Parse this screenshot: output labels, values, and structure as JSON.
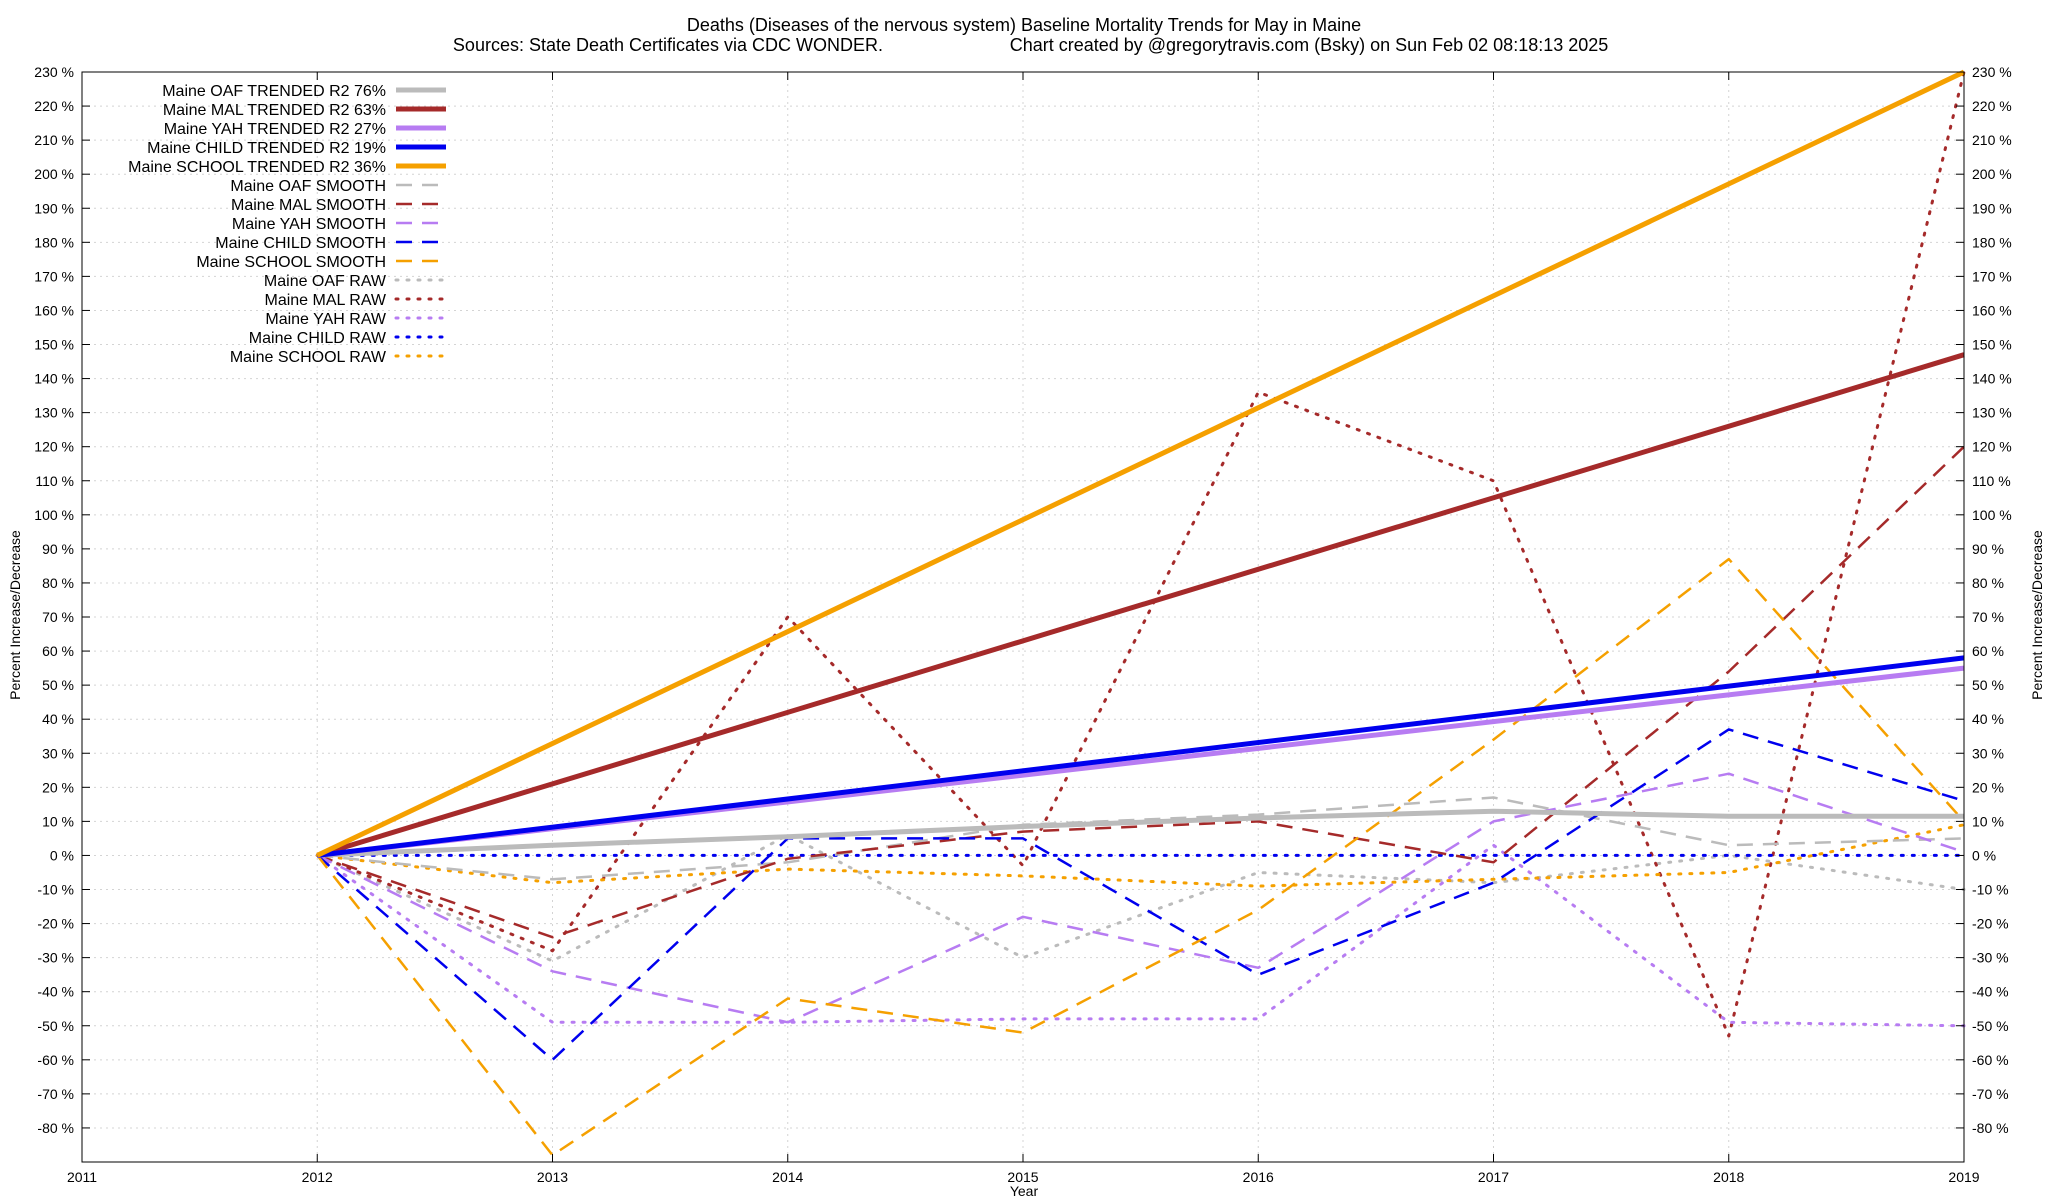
{
  "chart_data": {
    "type": "line",
    "title": "Deaths (Diseases of the nervous system)  Baseline Mortality Trends for May in Maine",
    "subtitle_left": "Sources: State Death Certificates via CDC WONDER.",
    "subtitle_right": "Chart created by @gregorytravis.com (Bsky) on Sun Feb 02 08:18:13 2025",
    "xlabel": "Year",
    "ylabel": "Percent Increase/Decrease",
    "ylabel_right": "Percent Increase/Decrease",
    "xlim": [
      2011,
      2019
    ],
    "ylim": [
      -90,
      230
    ],
    "x_ticks": [
      "2011",
      "2012",
      "2013",
      "2014",
      "2015",
      "2016",
      "2017",
      "2018",
      "2019"
    ],
    "y_ticks": [
      "230 %",
      "220 %",
      "210 %",
      "200 %",
      "190 %",
      "180 %",
      "170 %",
      "160 %",
      "150 %",
      "140 %",
      "130 %",
      "120 %",
      "110 %",
      "100 %",
      "90 %",
      "80 %",
      "70 %",
      "60 %",
      "50 %",
      "40 %",
      "30 %",
      "20 %",
      "10 %",
      "0 %",
      "-10 %",
      "-20 %",
      "-30 %",
      "-40 %",
      "-50 %",
      "-60 %",
      "-70 %",
      "-80 %"
    ],
    "y_tick_values": [
      230,
      220,
      210,
      200,
      190,
      180,
      170,
      160,
      150,
      140,
      130,
      120,
      110,
      100,
      90,
      80,
      70,
      60,
      50,
      40,
      30,
      20,
      10,
      0,
      -10,
      -20,
      -30,
      -40,
      -50,
      -60,
      -70,
      -80
    ],
    "grid": true,
    "legend_position": "top-left",
    "series": [
      {
        "name": "Maine OAF TRENDED R2  76%",
        "style": "trend",
        "color": "#bbbbbb",
        "x": [
          2012,
          2013,
          2014,
          2015,
          2016,
          2017,
          2018,
          2019
        ],
        "values": [
          0,
          3,
          5.5,
          8.5,
          11,
          13,
          11.5,
          11.5
        ]
      },
      {
        "name": "Maine MAL TRENDED R2  63%",
        "style": "trend",
        "color": "#a52a2a",
        "x": [
          2012,
          2019
        ],
        "values": [
          0,
          147
        ]
      },
      {
        "name": "Maine YAH TRENDED R2  27%",
        "style": "trend",
        "color": "#b77cf2",
        "x": [
          2012,
          2019
        ],
        "values": [
          0,
          55
        ]
      },
      {
        "name": "Maine CHILD TRENDED R2  19%",
        "style": "trend",
        "color": "#0000ee",
        "x": [
          2012,
          2019
        ],
        "values": [
          0,
          58
        ]
      },
      {
        "name": "Maine SCHOOL TRENDED R2  36%",
        "style": "trend",
        "color": "#f5a000",
        "x": [
          2012,
          2019
        ],
        "values": [
          0,
          230
        ]
      },
      {
        "name": "Maine OAF SMOOTH",
        "style": "smooth",
        "color": "#bbbbbb",
        "x": [
          2012,
          2013,
          2014,
          2015,
          2016,
          2017,
          2018,
          2019
        ],
        "values": [
          0,
          -7,
          -2,
          9,
          12,
          17,
          3,
          5
        ]
      },
      {
        "name": "Maine MAL SMOOTH",
        "style": "smooth",
        "color": "#a52a2a",
        "x": [
          2012,
          2013,
          2014,
          2015,
          2016,
          2017,
          2018,
          2019
        ],
        "values": [
          0,
          -24,
          -1,
          7,
          10,
          -2,
          54,
          120
        ]
      },
      {
        "name": "Maine YAH SMOOTH",
        "style": "smooth",
        "color": "#b77cf2",
        "x": [
          2012,
          2013,
          2014,
          2015,
          2016,
          2017,
          2018,
          2019
        ],
        "values": [
          0,
          -34,
          -49,
          -18,
          -33,
          10,
          24,
          1
        ]
      },
      {
        "name": "Maine CHILD SMOOTH",
        "style": "smooth",
        "color": "#0000ee",
        "x": [
          2012,
          2013,
          2014,
          2015,
          2016,
          2017,
          2018,
          2019
        ],
        "values": [
          0,
          -60,
          5,
          5,
          -35,
          -8,
          37,
          16
        ]
      },
      {
        "name": "Maine SCHOOL SMOOTH",
        "style": "smooth",
        "color": "#f5a000",
        "x": [
          2012,
          2013,
          2014,
          2015,
          2016,
          2017,
          2018,
          2019
        ],
        "values": [
          0,
          -88,
          -42,
          -52,
          -16,
          34,
          87,
          10
        ]
      },
      {
        "name": "Maine OAF RAW",
        "style": "raw",
        "color": "#bbbbbb",
        "x": [
          2012,
          2013,
          2014,
          2015,
          2016,
          2017,
          2018,
          2019
        ],
        "values": [
          0,
          -31,
          6,
          -30,
          -5,
          -8,
          0,
          -10
        ]
      },
      {
        "name": "Maine MAL RAW",
        "style": "raw",
        "color": "#a52a2a",
        "x": [
          2012,
          2013,
          2014,
          2015,
          2016,
          2017,
          2018,
          2019
        ],
        "values": [
          0,
          -28,
          70,
          -3,
          136,
          110,
          -53,
          230
        ]
      },
      {
        "name": "Maine YAH RAW",
        "style": "raw",
        "color": "#b77cf2",
        "x": [
          2012,
          2013,
          2014,
          2015,
          2016,
          2017,
          2018,
          2019
        ],
        "values": [
          0,
          -49,
          -49,
          -48,
          -48,
          3,
          -49,
          -50
        ]
      },
      {
        "name": "Maine CHILD RAW",
        "style": "raw",
        "color": "#0000ee",
        "x": [
          2012,
          2013,
          2014,
          2015,
          2016,
          2017,
          2018,
          2019
        ],
        "values": [
          0,
          0,
          0,
          0,
          0,
          0,
          0,
          0
        ]
      },
      {
        "name": "Maine SCHOOL RAW",
        "style": "raw",
        "color": "#f5a000",
        "x": [
          2012,
          2013,
          2014,
          2015,
          2016,
          2017,
          2018,
          2019
        ],
        "values": [
          0,
          -8,
          -4,
          -6,
          -9,
          -7,
          -5,
          9
        ]
      }
    ]
  }
}
